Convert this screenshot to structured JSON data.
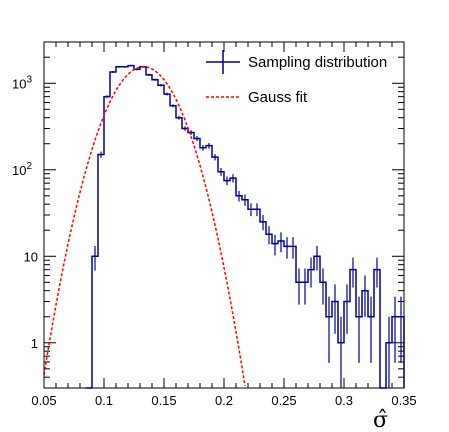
{
  "chart_data": {
    "type": "line",
    "title": "",
    "xlabel": "σ̂",
    "ylabel": "",
    "xlim": [
      0.05,
      0.35
    ],
    "ylim": [
      0.3,
      3000
    ],
    "y_scale": "log",
    "grid": false,
    "legend_position": "top-right",
    "x_ticks": [
      "0.05",
      "0.1",
      "0.15",
      "0.2",
      "0.25",
      "0.3",
      "0.35"
    ],
    "y_ticks": [
      {
        "value": 1,
        "base": "1",
        "exp": ""
      },
      {
        "value": 10,
        "base": "10",
        "exp": ""
      },
      {
        "value": 100,
        "base": "10",
        "exp": "2"
      },
      {
        "value": 1000,
        "base": "10",
        "exp": "3"
      }
    ],
    "series": [
      {
        "name": "Sampling distribution",
        "kind": "histogram",
        "color": "#00008b",
        "bin_width": 0.005,
        "bins": [
          [
            0.085,
            0.1
          ],
          [
            0.09,
            10
          ],
          [
            0.095,
            150
          ],
          [
            0.1,
            700
          ],
          [
            0.105,
            1350
          ],
          [
            0.11,
            1550
          ],
          [
            0.115,
            1550
          ],
          [
            0.12,
            1600
          ],
          [
            0.125,
            1450
          ],
          [
            0.13,
            1550
          ],
          [
            0.135,
            1250
          ],
          [
            0.14,
            1100
          ],
          [
            0.145,
            950
          ],
          [
            0.15,
            750
          ],
          [
            0.155,
            550
          ],
          [
            0.16,
            400
          ],
          [
            0.165,
            300
          ],
          [
            0.17,
            270
          ],
          [
            0.175,
            230
          ],
          [
            0.18,
            180
          ],
          [
            0.185,
            190
          ],
          [
            0.19,
            140
          ],
          [
            0.195,
            95
          ],
          [
            0.2,
            75
          ],
          [
            0.205,
            80
          ],
          [
            0.21,
            50
          ],
          [
            0.215,
            45
          ],
          [
            0.22,
            35
          ],
          [
            0.225,
            35
          ],
          [
            0.23,
            25
          ],
          [
            0.235,
            18
          ],
          [
            0.24,
            14
          ],
          [
            0.245,
            15
          ],
          [
            0.25,
            13
          ],
          [
            0.255,
            13
          ],
          [
            0.26,
            5
          ],
          [
            0.265,
            5
          ],
          [
            0.27,
            7
          ],
          [
            0.275,
            10
          ],
          [
            0.28,
            5
          ],
          [
            0.285,
            2
          ],
          [
            0.29,
            3
          ],
          [
            0.295,
            1
          ],
          [
            0.3,
            3
          ],
          [
            0.305,
            7
          ],
          [
            0.31,
            2
          ],
          [
            0.315,
            4
          ],
          [
            0.32,
            2
          ],
          [
            0.325,
            7
          ],
          [
            0.33,
            0.3
          ],
          [
            0.335,
            1
          ],
          [
            0.34,
            2
          ],
          [
            0.345,
            2
          ]
        ]
      },
      {
        "name": "Gauss fit",
        "kind": "function",
        "color": "#ff0000",
        "line_style": "dashed",
        "peak": 1550,
        "mean": 0.133,
        "sigma": 0.0205
      }
    ]
  }
}
